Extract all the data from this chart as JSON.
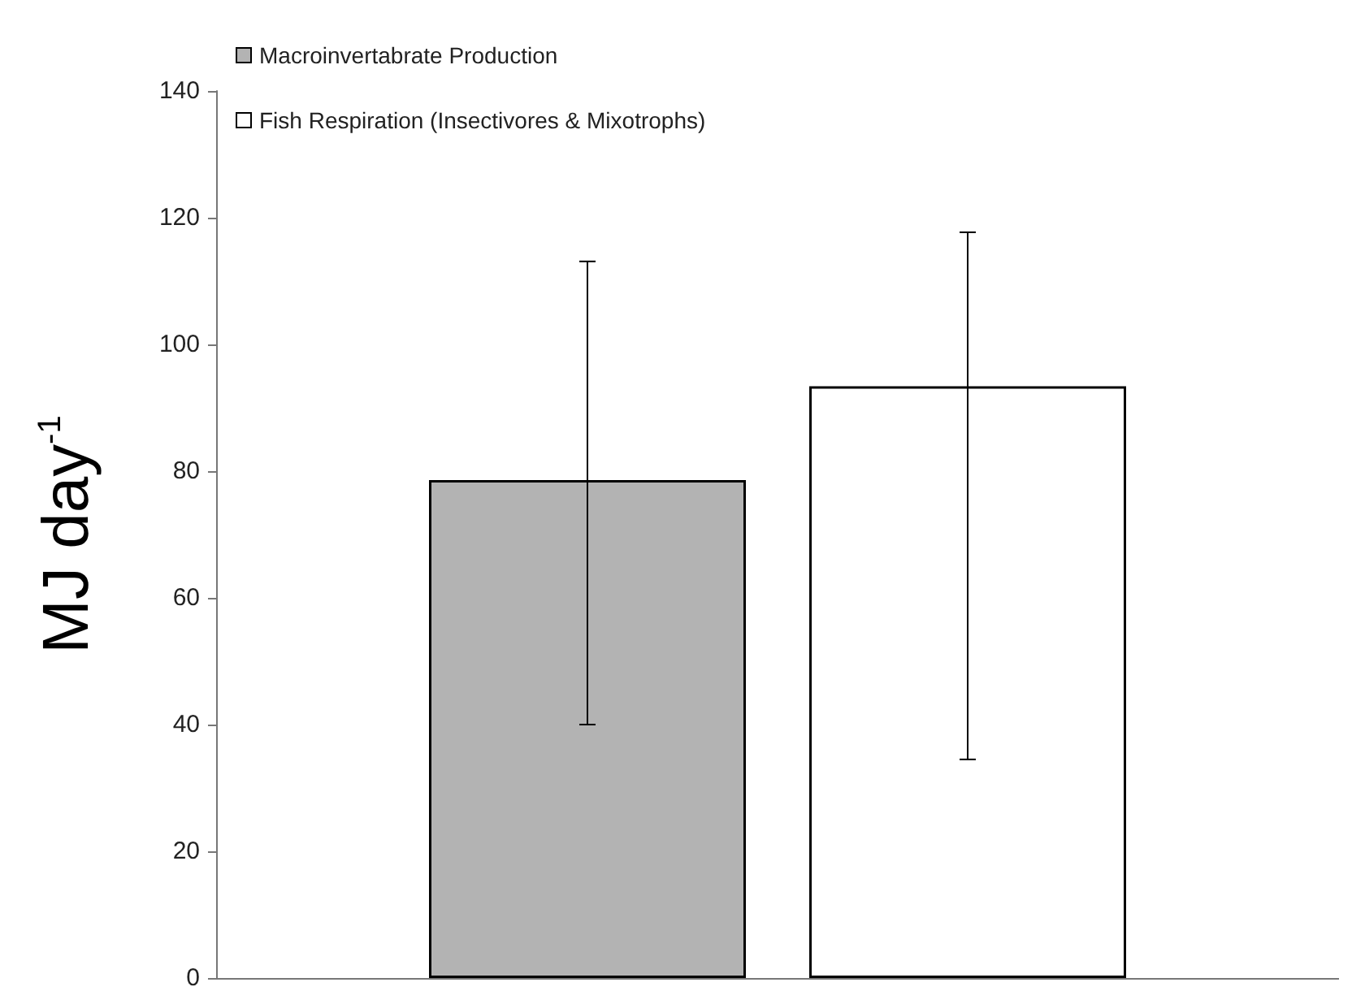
{
  "chart_data": {
    "type": "bar",
    "ylabel": "MJ day$^{-1}$",
    "categories": [
      null
    ],
    "series": [
      {
        "name": "Macroinvertabrate Production",
        "color": "#b3b3b3",
        "values": [
          78.6
        ],
        "errors": [
          [
            40,
            113.1
          ]
        ]
      },
      {
        "name": "Fish Respiration (Insectivores & Mixotrophs)",
        "color": "#ffffff",
        "values": [
          93.4
        ],
        "errors": [
          [
            34.5,
            117.7
          ]
        ]
      }
    ],
    "ylim": [
      0,
      140
    ],
    "yticks": [
      0,
      20,
      40,
      60,
      80,
      100,
      120,
      140
    ],
    "grid": false,
    "legend": "top left"
  }
}
